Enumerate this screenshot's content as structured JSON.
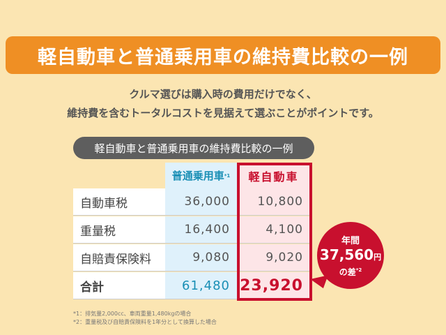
{
  "title": "軽自動車と普通乗用車の維持費比較の一例",
  "subtitle_lines": [
    "クルマ選びは購入時の費用だけでなく、",
    "維持費を含むトータルコストを見据えて選ぶことがポイントです。"
  ],
  "table": {
    "caption": "軽自動車と普通乗用車の維持費比較の一例",
    "headers": {
      "regular": "普通乗用車",
      "regular_note": "*1",
      "kei": "軽自動車"
    },
    "rows": [
      {
        "label": "自動車税",
        "regular": "36,000",
        "kei": "10,800"
      },
      {
        "label": "重量税",
        "regular": "16,400",
        "kei": "4,100"
      },
      {
        "label": "自賠責保険料",
        "regular": "9,080",
        "kei": "9,020"
      },
      {
        "label": "合計",
        "regular": "61,480",
        "kei": "23,920"
      }
    ]
  },
  "bubble": {
    "line1": "年間",
    "amount": "37,560",
    "unit": "円",
    "line3": "の差",
    "note": "*2"
  },
  "footnotes": [
    "*1：排気量2,000cc、車両重量1,480kgの場合",
    "*2：重量税及び自賠責保険料を1年分として換算した場合"
  ],
  "colors": {
    "orange": "#ef8f24",
    "red": "#c8102e",
    "blue": "#1a8fb5",
    "background": "#fbe5b2"
  }
}
